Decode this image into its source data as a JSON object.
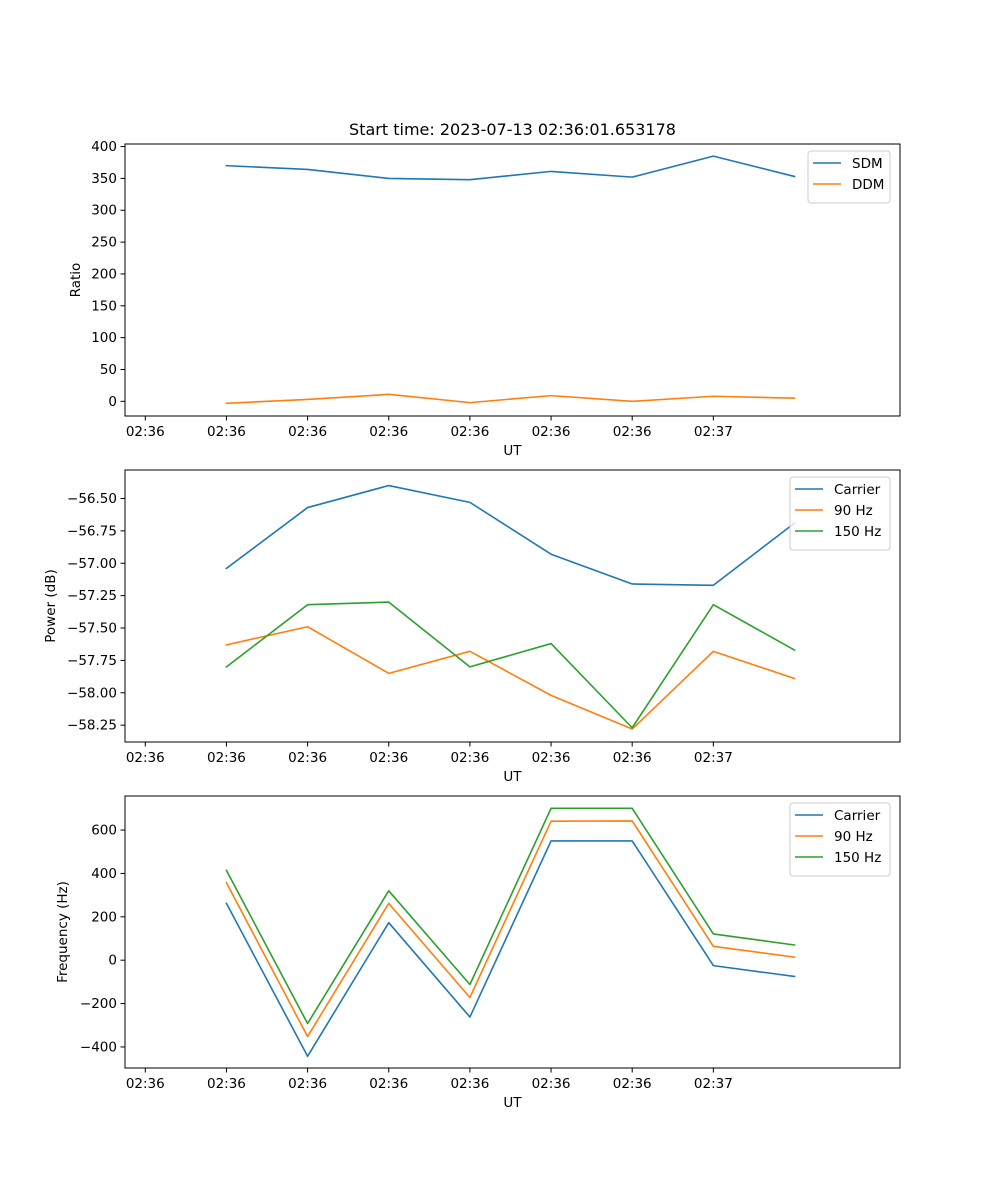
{
  "chart_data": [
    {
      "type": "line",
      "title": "Start time: 2023-07-13 02:36:01.653178",
      "xlabel": "UT",
      "ylabel": "Ratio",
      "x_tick_labels": [
        "02:36",
        "02:36",
        "02:36",
        "02:36",
        "02:36",
        "02:36",
        "02:36",
        "02:37"
      ],
      "xlim": [
        -0.25,
        9.3
      ],
      "x": [
        1,
        2,
        3,
        4,
        5,
        6,
        7,
        8
      ],
      "ylim": [
        -23,
        404
      ],
      "y_ticks": [
        0,
        50,
        100,
        150,
        200,
        250,
        300,
        350,
        400
      ],
      "y_tick_labels": [
        "0",
        "50",
        "100",
        "150",
        "200",
        "250",
        "300",
        "350",
        "400"
      ],
      "legend_position": "top-right",
      "series": [
        {
          "name": "SDM",
          "color": "#1f77b4",
          "values": [
            370,
            364,
            350,
            348,
            361,
            352,
            385,
            353
          ]
        },
        {
          "name": "DDM",
          "color": "#ff7f0e",
          "values": [
            -3,
            3,
            11,
            -2,
            9,
            0,
            8,
            5
          ]
        }
      ]
    },
    {
      "type": "line",
      "title": "",
      "xlabel": "UT",
      "ylabel": "Power (dB)",
      "x_tick_labels": [
        "02:36",
        "02:36",
        "02:36",
        "02:36",
        "02:36",
        "02:36",
        "02:36",
        "02:37"
      ],
      "xlim": [
        -0.25,
        9.3
      ],
      "x": [
        1,
        2,
        3,
        4,
        5,
        6,
        7,
        8
      ],
      "ylim": [
        -58.38,
        -56.28
      ],
      "y_ticks": [
        -58.25,
        -58.0,
        -57.75,
        -57.5,
        -57.25,
        -57.0,
        -56.75,
        -56.5
      ],
      "y_tick_labels": [
        "−58.25",
        "−58.00",
        "−57.75",
        "−57.50",
        "−57.25",
        "−57.00",
        "−56.75",
        "−56.50"
      ],
      "legend_position": "top-right",
      "series": [
        {
          "name": "Carrier",
          "color": "#1f77b4",
          "values": [
            -57.04,
            -56.57,
            -56.4,
            -56.53,
            -56.93,
            -57.16,
            -57.17,
            -56.69
          ]
        },
        {
          "name": "90 Hz",
          "color": "#ff7f0e",
          "values": [
            -57.63,
            -57.49,
            -57.85,
            -57.68,
            -58.02,
            -58.28,
            -57.68,
            -57.89
          ]
        },
        {
          "name": "150 Hz",
          "color": "#2ca02c",
          "values": [
            -57.8,
            -57.32,
            -57.3,
            -57.8,
            -57.62,
            -58.27,
            -57.32,
            -57.67
          ]
        }
      ]
    },
    {
      "type": "line",
      "title": "",
      "xlabel": "UT",
      "ylabel": "Frequency (Hz)",
      "x_tick_labels": [
        "02:36",
        "02:36",
        "02:36",
        "02:36",
        "02:36",
        "02:36",
        "02:36",
        "02:37"
      ],
      "xlim": [
        -0.25,
        9.3
      ],
      "x": [
        1,
        2,
        3,
        4,
        5,
        6,
        7,
        8
      ],
      "ylim": [
        -497,
        757
      ],
      "y_ticks": [
        -400,
        -200,
        0,
        200,
        400,
        600
      ],
      "y_tick_labels": [
        "−400",
        "−200",
        "0",
        "200",
        "400",
        "600"
      ],
      "legend_position": "top-right",
      "series": [
        {
          "name": "Carrier",
          "color": "#1f77b4",
          "values": [
            262,
            -443,
            173,
            -262,
            550,
            550,
            -25,
            -75
          ]
        },
        {
          "name": "90 Hz",
          "color": "#ff7f0e",
          "values": [
            357,
            -352,
            262,
            -172,
            641,
            642,
            64,
            14
          ]
        },
        {
          "name": "150 Hz",
          "color": "#2ca02c",
          "values": [
            414,
            -292,
            320,
            -112,
            700,
            700,
            121,
            70
          ]
        }
      ]
    }
  ]
}
